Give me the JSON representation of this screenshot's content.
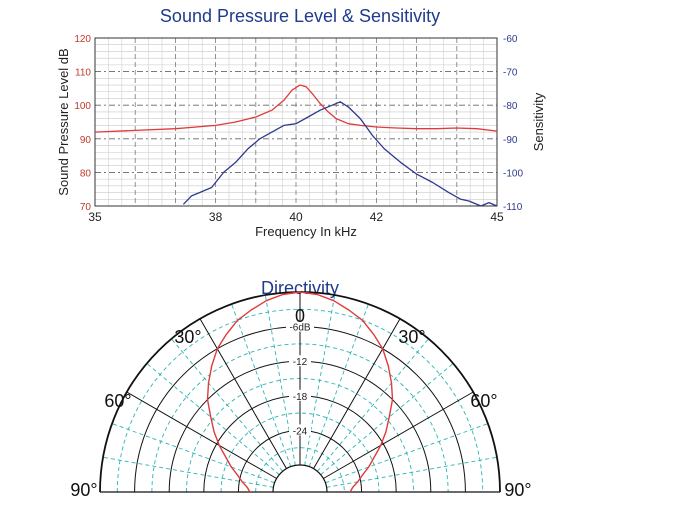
{
  "colors": {
    "spl": "#e03a3a",
    "sensitivity": "#2e3a8c",
    "title": "#1f3b8c",
    "grid": "#555555",
    "polar_grid": "#2bb5b5"
  },
  "chart_data": [
    {
      "type": "line",
      "title": "Sound Pressure Level & Sensitivity",
      "xlabel": "Frequency In kHz",
      "ylabel": "Sound Pressure Level dB",
      "y2label": "Sensitivity",
      "xlim": [
        35,
        45
      ],
      "ylim": [
        70,
        120
      ],
      "y2lim": [
        -110,
        -60
      ],
      "x_ticks": [
        "35",
        "38",
        "40",
        "42",
        "45"
      ],
      "y_ticks": [
        "70",
        "80",
        "90",
        "100",
        "110",
        "120"
      ],
      "y2_ticks": [
        "-110",
        "-100",
        "-90",
        "-80",
        "-70",
        "-60"
      ],
      "grid": true,
      "series": [
        {
          "axis": "left",
          "color": "#e03a3a",
          "x": [
            35,
            36,
            37,
            38,
            38.5,
            39,
            39.4,
            39.7,
            39.9,
            40.1,
            40.25,
            40.4,
            40.6,
            40.8,
            41,
            41.3,
            41.6,
            42,
            42.5,
            43,
            43.5,
            44,
            44.5,
            45
          ],
          "y": [
            92,
            92.5,
            93,
            94,
            95,
            96.5,
            98.5,
            101.5,
            104.5,
            106,
            105.5,
            103.5,
            100.5,
            98,
            96,
            94.5,
            94,
            93.5,
            93.2,
            93,
            93,
            93.2,
            93,
            92.3
          ]
        },
        {
          "axis": "right",
          "color": "#2e3a8c",
          "x": [
            37.2,
            37.4,
            37.6,
            37.9,
            38.2,
            38.5,
            38.8,
            39.1,
            39.4,
            39.7,
            40,
            40.3,
            40.6,
            40.9,
            41.1,
            41.3,
            41.6,
            41.9,
            42.2,
            42.6,
            43,
            43.4,
            43.8,
            44.1,
            44.3,
            44.6,
            44.8,
            45
          ],
          "y": [
            -109.5,
            -107,
            -106,
            -104.5,
            -100,
            -97,
            -93,
            -90,
            -88,
            -86,
            -85.5,
            -83.5,
            -81.5,
            -80,
            -79,
            -80.5,
            -84,
            -89,
            -93,
            -97,
            -100.5,
            -103,
            -106,
            -108,
            -108.5,
            -110,
            -109,
            -110
          ]
        }
      ]
    },
    {
      "type": "polar",
      "title": "Directivity",
      "angle_labels": [
        "0",
        "30°",
        "30°",
        "60°",
        "60°",
        "90°",
        "90°"
      ],
      "ring_labels": [
        "-6dB",
        "-12",
        "-18",
        "-24"
      ],
      "rlim": [
        -30,
        0
      ],
      "series": [
        {
          "color": "#e03a3a",
          "angle_deg": [
            0,
            5,
            10,
            15,
            20,
            25,
            30,
            35,
            40,
            45,
            50,
            55,
            60,
            65,
            70,
            75,
            80,
            85,
            90
          ],
          "level_db": [
            0,
            -0.3,
            -1,
            -2,
            -3,
            -4.5,
            -6,
            -8,
            -10,
            -12,
            -14.5,
            -16.5,
            -18.5,
            -20.5,
            -22,
            -23.5,
            -24.5,
            -25.5,
            -26
          ]
        }
      ]
    }
  ]
}
